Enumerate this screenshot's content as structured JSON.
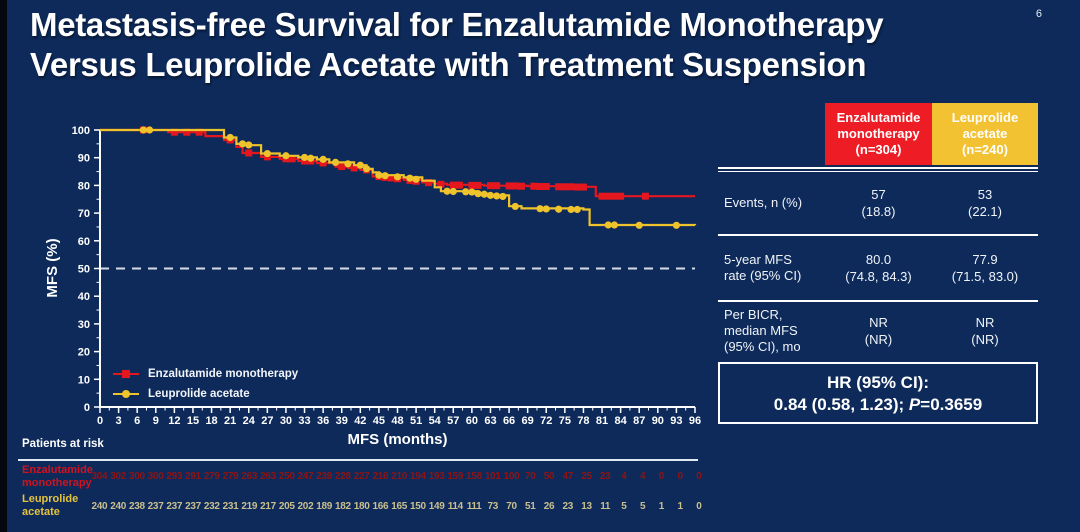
{
  "title": {
    "line1": "Metastasis-free Survival for Enzalutamide Monotherapy",
    "line2": "Versus Leuprolide Acetate with Treatment Suspension"
  },
  "page_number": "6",
  "colors": {
    "bg": "#0d2a5a",
    "red": "#e4171f",
    "red_header": "#ee1c25",
    "yellow": "#eec32b",
    "yellow_header": "#f2c233",
    "red_label": "#cf1420",
    "red_values": "#8e1414",
    "yellow_label": "#e6c33d",
    "yellow_values": "#cabf8e",
    "dashed": "#d3dce6"
  },
  "chart_data": {
    "type": "line",
    "subtype": "kaplan-meier-step",
    "title": "",
    "xlabel": "MFS (months)",
    "ylabel": "MFS (%)",
    "xlim": [
      0,
      96
    ],
    "ylim": [
      0,
      100
    ],
    "x_tick_step": 3,
    "y_tick_step": 10,
    "grid": false,
    "reference_line_y": 50,
    "legend_position": "inside-bottom-left",
    "series": [
      {
        "name": "Enzalutamide monotherapy",
        "color": "#e4171f",
        "marker": "square",
        "steps": [
          [
            0,
            100
          ],
          [
            11,
            99.2
          ],
          [
            17,
            97.8
          ],
          [
            20,
            96.4
          ],
          [
            22,
            93.9
          ],
          [
            23,
            91.7
          ],
          [
            26,
            90.3
          ],
          [
            29,
            89.6
          ],
          [
            32,
            88.8
          ],
          [
            35,
            88.1
          ],
          [
            38,
            86.8
          ],
          [
            40,
            86.3
          ],
          [
            42,
            85.6
          ],
          [
            44,
            83.2
          ],
          [
            46,
            82.7
          ],
          [
            49,
            82
          ],
          [
            52,
            81.1
          ],
          [
            54,
            80.6
          ],
          [
            56,
            80.2
          ],
          [
            62,
            79.9
          ],
          [
            69,
            79.7
          ],
          [
            74,
            79.5
          ],
          [
            80,
            76.1
          ],
          [
            96,
            76.1
          ]
        ],
        "censors": [
          [
            7,
            100
          ],
          [
            12,
            99.2
          ],
          [
            14,
            99.2
          ],
          [
            16,
            99.2
          ],
          [
            21,
            96.4
          ],
          [
            24,
            91.7
          ],
          [
            27,
            90.3
          ],
          [
            30,
            89.6
          ],
          [
            31,
            89.6
          ],
          [
            33,
            88.8
          ],
          [
            34,
            88.8
          ],
          [
            36,
            88.1
          ],
          [
            39,
            86.8
          ],
          [
            41,
            86.3
          ],
          [
            43,
            85.6
          ],
          [
            45,
            83.2
          ],
          [
            46,
            82.9
          ],
          [
            47,
            82.7
          ],
          [
            48,
            82.4
          ],
          [
            50,
            81.8
          ],
          [
            51,
            81.5
          ],
          [
            53,
            81
          ],
          [
            55,
            80.4
          ],
          [
            57,
            80.1
          ],
          [
            58,
            80.1
          ],
          [
            60,
            80
          ],
          [
            61,
            80
          ],
          [
            63,
            79.9
          ],
          [
            64,
            79.9
          ],
          [
            66,
            79.8
          ],
          [
            67,
            79.8
          ],
          [
            68,
            79.7
          ],
          [
            70,
            79.7
          ],
          [
            71,
            79.6
          ],
          [
            72,
            79.6
          ],
          [
            74,
            79.5
          ],
          [
            75,
            79.5
          ],
          [
            76,
            79.5
          ],
          [
            77,
            79.4
          ],
          [
            78,
            79.4
          ],
          [
            81,
            76.1
          ],
          [
            82,
            76.1
          ],
          [
            83,
            76.1
          ],
          [
            84,
            76.1
          ],
          [
            88,
            76.1
          ]
        ]
      },
      {
        "name": "Leuprolide acetate",
        "color": "#eec32b",
        "marker": "circle",
        "steps": [
          [
            0,
            100
          ],
          [
            20,
            97.3
          ],
          [
            22,
            95
          ],
          [
            24,
            94.5
          ],
          [
            26,
            91.5
          ],
          [
            29,
            90.7
          ],
          [
            32,
            90.1
          ],
          [
            35,
            89.4
          ],
          [
            37,
            88.3
          ],
          [
            41,
            87.3
          ],
          [
            43,
            86
          ],
          [
            44,
            84.7
          ],
          [
            45,
            83.7
          ],
          [
            49,
            82.9
          ],
          [
            52,
            81.7
          ],
          [
            54,
            79.3
          ],
          [
            55,
            77.9
          ],
          [
            61,
            77
          ],
          [
            63,
            76.4
          ],
          [
            66,
            72.5
          ],
          [
            68,
            71.7
          ],
          [
            78,
            71.3
          ],
          [
            79,
            65.7
          ],
          [
            96,
            65.6
          ]
        ],
        "censors": [
          [
            7,
            100
          ],
          [
            8,
            100
          ],
          [
            21,
            97.3
          ],
          [
            23,
            95
          ],
          [
            24,
            94.6
          ],
          [
            27,
            91.5
          ],
          [
            30,
            90.7
          ],
          [
            33,
            90.1
          ],
          [
            34,
            89.8
          ],
          [
            36,
            89.4
          ],
          [
            38,
            88.3
          ],
          [
            40,
            87.8
          ],
          [
            42,
            87.3
          ],
          [
            43,
            86
          ],
          [
            45,
            83.7
          ],
          [
            46,
            83.5
          ],
          [
            48,
            83.1
          ],
          [
            50,
            82.6
          ],
          [
            51,
            82.2
          ],
          [
            56,
            77.9
          ],
          [
            57,
            77.8
          ],
          [
            59,
            77.7
          ],
          [
            60,
            77.6
          ],
          [
            61,
            77
          ],
          [
            62,
            76.8
          ],
          [
            63,
            76.4
          ],
          [
            64,
            76.2
          ],
          [
            65,
            76
          ],
          [
            67,
            72.4
          ],
          [
            71,
            71.6
          ],
          [
            72,
            71.5
          ],
          [
            74,
            71.4
          ],
          [
            76,
            71.3
          ],
          [
            77,
            71.3
          ],
          [
            82,
            65.7
          ],
          [
            83,
            65.7
          ],
          [
            87,
            65.6
          ],
          [
            93,
            65.6
          ]
        ]
      }
    ],
    "at_risk": {
      "title": "Patients at risk",
      "months": [
        0,
        3,
        6,
        9,
        12,
        15,
        18,
        21,
        24,
        27,
        30,
        33,
        36,
        39,
        42,
        45,
        48,
        51,
        54,
        57,
        60,
        63,
        66,
        69,
        72,
        75,
        78,
        81,
        84,
        87,
        90,
        93,
        96
      ],
      "groups": [
        {
          "label": "Enzalutamide\nmonotherapy",
          "values": [
            304,
            302,
            300,
            300,
            293,
            291,
            279,
            279,
            263,
            263,
            250,
            247,
            239,
            228,
            227,
            216,
            210,
            194,
            193,
            159,
            158,
            101,
            100,
            70,
            50,
            47,
            25,
            23,
            4,
            4,
            0,
            0,
            0
          ]
        },
        {
          "label": "Leuprolide\nacetate",
          "values": [
            240,
            240,
            238,
            237,
            237,
            237,
            232,
            231,
            219,
            217,
            205,
            202,
            189,
            182,
            180,
            166,
            165,
            150,
            149,
            114,
            111,
            73,
            70,
            51,
            26,
            23,
            13,
            11,
            5,
            5,
            1,
            1,
            0
          ]
        }
      ]
    }
  },
  "table": {
    "columns": [
      {
        "title": "Enzalutamide\nmonotherapy\n(n=304)",
        "color": "#ee1c25"
      },
      {
        "title": "Leuprolide\nacetate\n(n=240)",
        "color": "#f2c233"
      }
    ],
    "rows": [
      {
        "label": "Events, n (%)",
        "enza": "57\n(18.8)",
        "leup": "53\n(22.1)"
      },
      {
        "label": "5-year MFS\nrate (95% CI)",
        "enza": "80.0\n(74.8, 84.3)",
        "leup": "77.9\n(71.5, 83.0)"
      },
      {
        "label": "Per BICR,\nmedian MFS\n(95% CI), mo",
        "enza": "NR\n(NR)",
        "leup": "NR\n(NR)"
      }
    ],
    "hr_box": {
      "line1": "HR (95% CI):",
      "value_prefix": "0.84 (0.58, 1.23); ",
      "p_label": "P",
      "p_value": "=0.3659"
    }
  }
}
